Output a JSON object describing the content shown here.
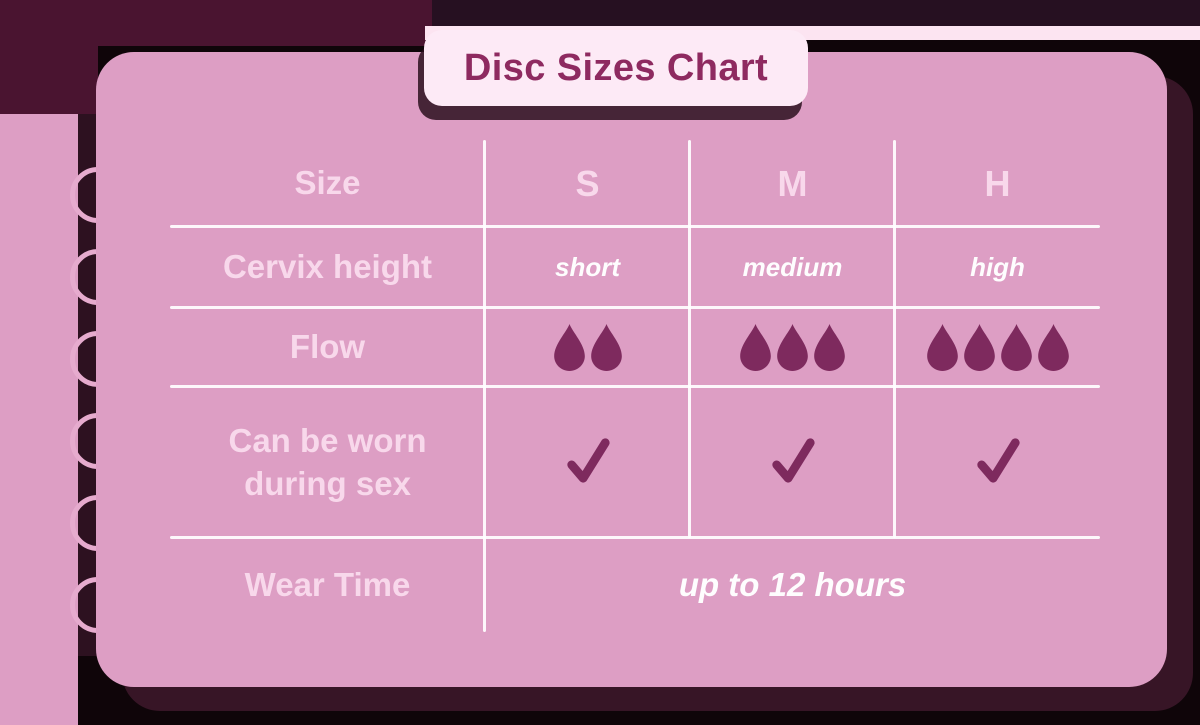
{
  "title": "Disc Sizes Chart",
  "colors": {
    "card_pink": "#dd9ec4",
    "badge_pink": "#fdeaf6",
    "label_pink": "#f8d8eb",
    "value_white": "#fefdfe",
    "title_magenta": "#8e2a60",
    "droplet": "#7e2a5e",
    "dark_purple": "#4a1430",
    "shadow_maroon": "#371526"
  },
  "table": {
    "header": {
      "label": "Size",
      "values": [
        "S",
        "M",
        "H"
      ]
    },
    "rows": [
      {
        "label": "Cervix height",
        "values": [
          "short",
          "medium",
          "high"
        ]
      },
      {
        "label": "Flow",
        "droplet_counts": [
          2,
          3,
          4
        ]
      },
      {
        "label": "Can be worn during sex",
        "checks": [
          true,
          true,
          true
        ]
      },
      {
        "label": "Wear Time",
        "merged_value": "up to 12 hours"
      }
    ]
  },
  "chart_data": {
    "type": "table",
    "title": "Disc Sizes Chart",
    "columns": [
      "Size",
      "S",
      "M",
      "H"
    ],
    "rows": [
      [
        "Cervix height",
        "short",
        "medium",
        "high"
      ],
      [
        "Flow",
        "2 drops",
        "3 drops",
        "4 drops"
      ],
      [
        "Can be worn during sex",
        "yes",
        "yes",
        "yes"
      ],
      [
        "Wear Time",
        "up to 12 hours",
        "up to 12 hours",
        "up to 12 hours"
      ]
    ],
    "legend_position": "none",
    "grid": true
  }
}
